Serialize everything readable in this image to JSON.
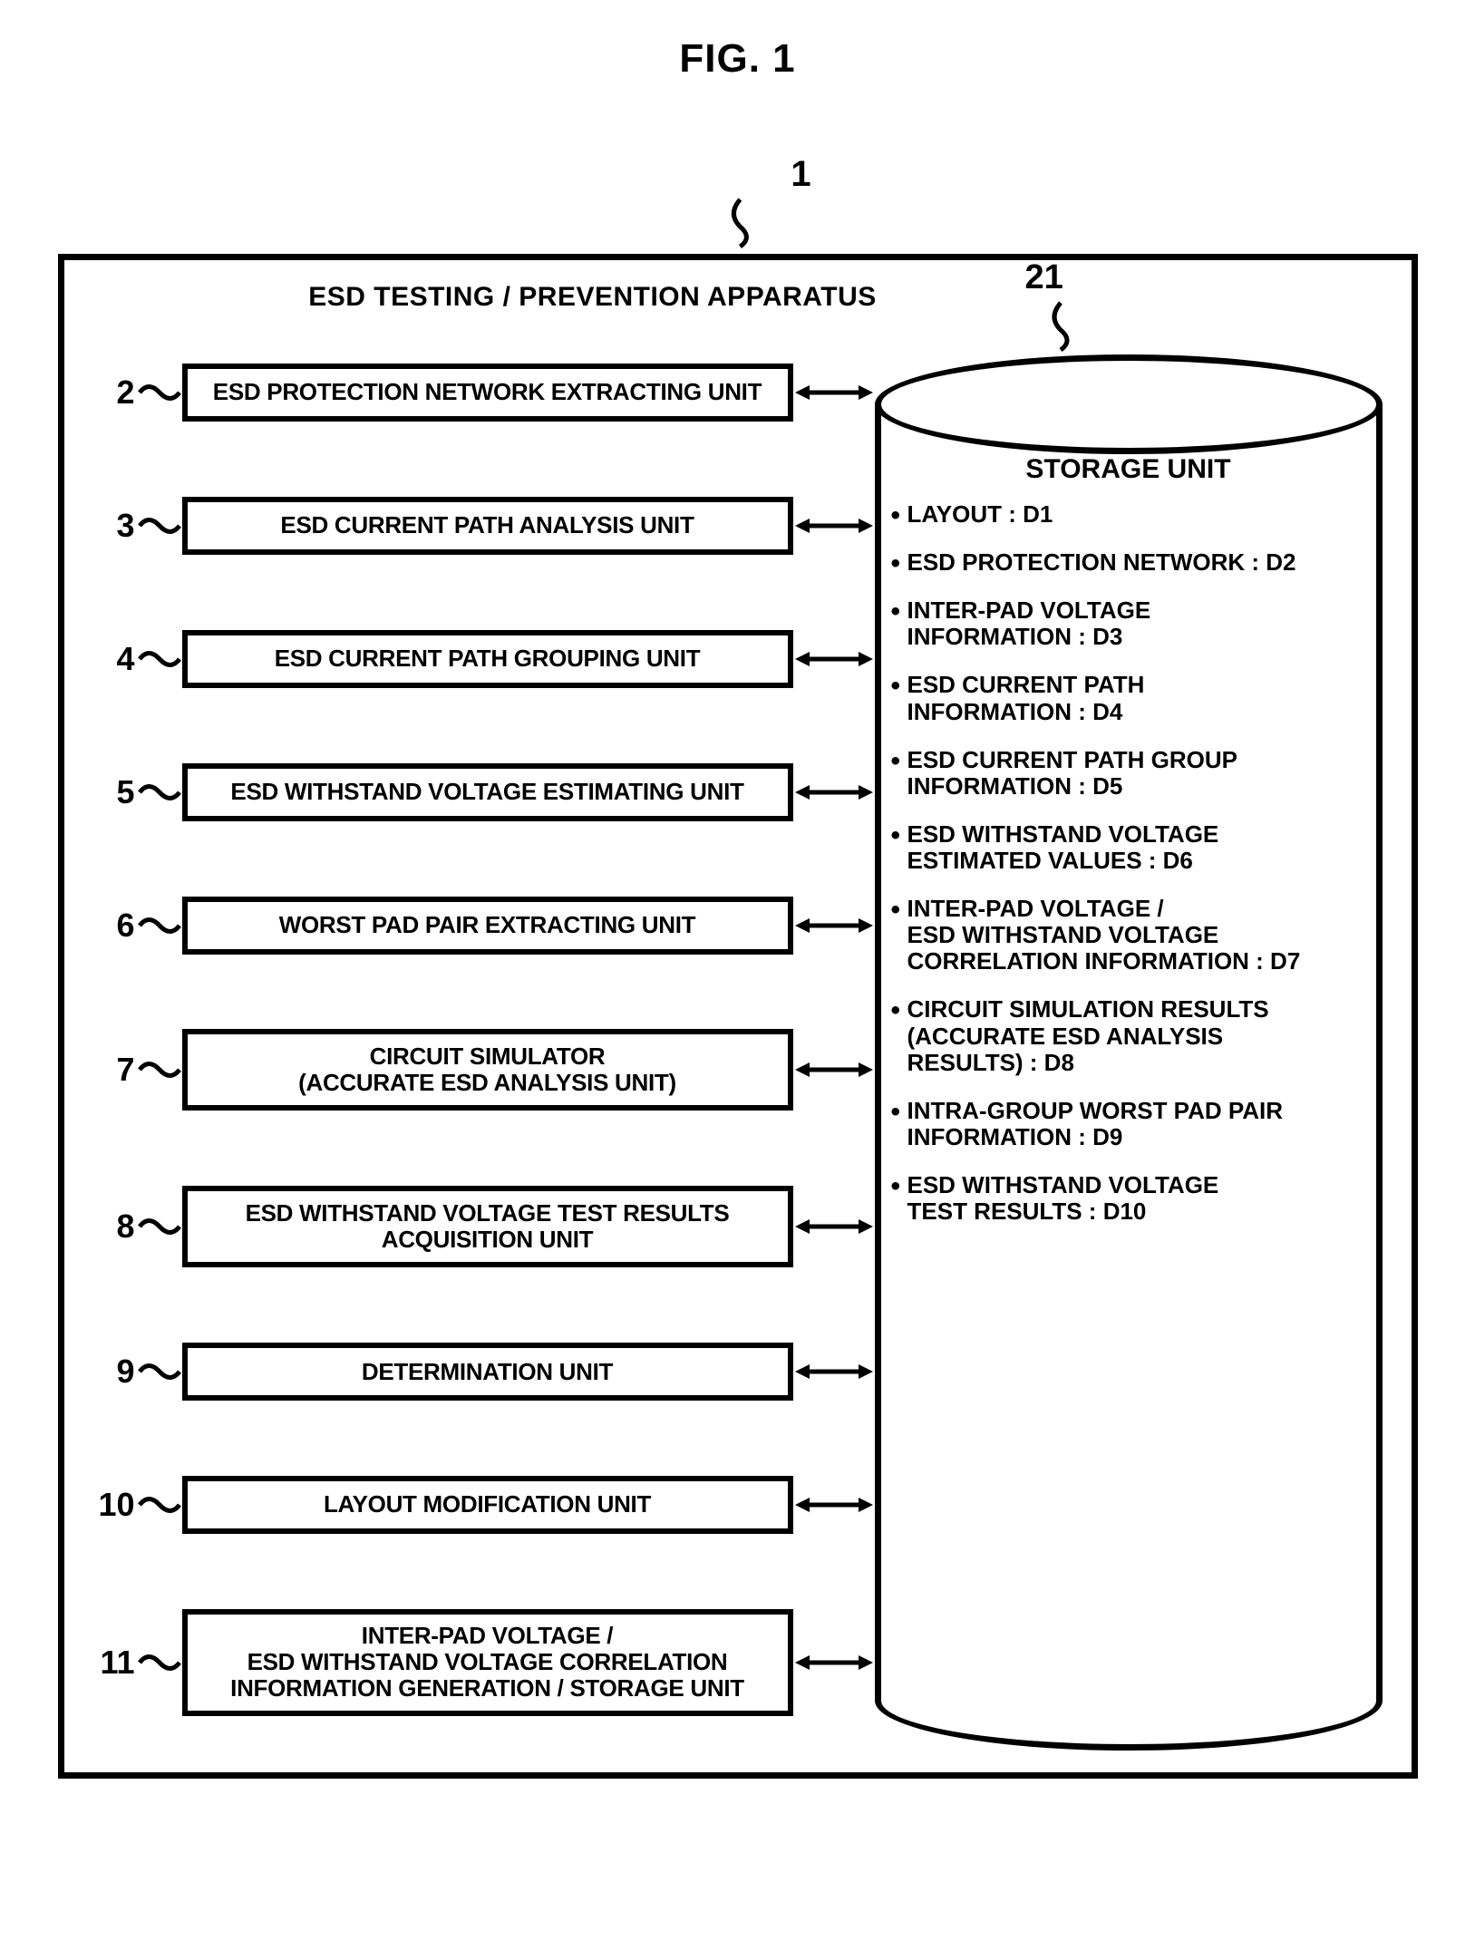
{
  "figure_title": "FIG. 1",
  "apparatus": {
    "ref_number": "1",
    "title": "ESD TESTING / PREVENTION APPARATUS",
    "storage_ref_number": "21"
  },
  "units": [
    {
      "num": "2",
      "label": "ESD PROTECTION NETWORK EXTRACTING UNIT"
    },
    {
      "num": "3",
      "label": "ESD CURRENT PATH ANALYSIS UNIT"
    },
    {
      "num": "4",
      "label": "ESD CURRENT PATH GROUPING UNIT"
    },
    {
      "num": "5",
      "label": "ESD WITHSTAND VOLTAGE ESTIMATING UNIT"
    },
    {
      "num": "6",
      "label": "WORST PAD PAIR EXTRACTING UNIT"
    },
    {
      "num": "7",
      "label": "CIRCUIT SIMULATOR\n(ACCURATE ESD ANALYSIS UNIT)"
    },
    {
      "num": "8",
      "label": "ESD WITHSTAND VOLTAGE TEST RESULTS\nACQUISITION UNIT"
    },
    {
      "num": "9",
      "label": "DETERMINATION UNIT"
    },
    {
      "num": "10",
      "label": "LAYOUT MODIFICATION UNIT"
    },
    {
      "num": "11",
      "label": "INTER-PAD VOLTAGE /\nESD WITHSTAND VOLTAGE CORRELATION\nINFORMATION GENERATION / STORAGE UNIT"
    }
  ],
  "storage": {
    "title": "STORAGE UNIT",
    "items": [
      "LAYOUT : D1",
      "ESD PROTECTION NETWORK : D2",
      "INTER-PAD VOLTAGE\nINFORMATION : D3",
      "ESD CURRENT PATH\nINFORMATION : D4",
      "ESD CURRENT PATH GROUP\nINFORMATION : D5",
      "ESD WITHSTAND VOLTAGE\nESTIMATED VALUES : D6",
      "INTER-PAD VOLTAGE /\nESD WITHSTAND VOLTAGE\nCORRELATION INFORMATION : D7",
      "CIRCUIT SIMULATION RESULTS\n(ACCURATE ESD ANALYSIS\nRESULTS) : D8",
      "INTRA-GROUP WORST PAD PAIR\nINFORMATION : D9",
      "ESD WITHSTAND VOLTAGE\nTEST RESULTS : D10"
    ]
  },
  "style": {
    "stroke": "#000000",
    "stroke_width": 7,
    "unit_border_width": 6,
    "unit_font_size": 26,
    "data_font_size": 26,
    "title_font_size": 30,
    "fig_title_font_size": 44,
    "background": "#ffffff"
  }
}
